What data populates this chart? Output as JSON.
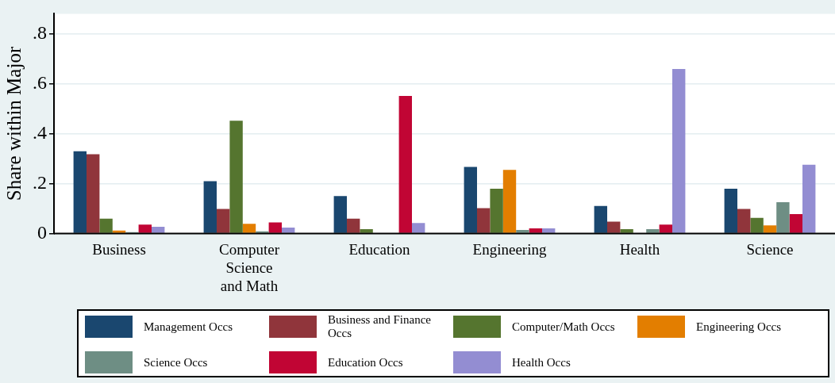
{
  "chart_data": {
    "type": "bar",
    "ylabel": "Share within Major",
    "categories": [
      "Business",
      "Computer Science and Math",
      "Education",
      "Engineering",
      "Health",
      "Science"
    ],
    "series": [
      {
        "name": "Management Occs",
        "color": "#1a476f",
        "values": [
          0.33,
          0.21,
          0.15,
          0.267,
          0.111,
          0.18
        ]
      },
      {
        "name": "Business and Finance Occs",
        "color": "#90353b",
        "values": [
          0.318,
          0.099,
          0.06,
          0.102,
          0.048,
          0.099
        ]
      },
      {
        "name": "Computer/Math Occs",
        "color": "#55752f",
        "values": [
          0.06,
          0.452,
          0.018,
          0.18,
          0.018,
          0.063
        ]
      },
      {
        "name": "Engineering Occs",
        "color": "#e37e00",
        "values": [
          0.012,
          0.039,
          0.003,
          0.255,
          0.003,
          0.033
        ]
      },
      {
        "name": "Science Occs",
        "color": "#6e8e84",
        "values": [
          0.006,
          0.009,
          0.003,
          0.015,
          0.018,
          0.126
        ]
      },
      {
        "name": "Education Occs",
        "color": "#c10534",
        "values": [
          0.036,
          0.045,
          0.551,
          0.021,
          0.036,
          0.078
        ]
      },
      {
        "name": "Health Occs",
        "color": "#938dd2",
        "values": [
          0.027,
          0.024,
          0.042,
          0.021,
          0.659,
          0.276
        ]
      }
    ],
    "ylim": [
      0,
      0.88
    ],
    "yticks": [
      0,
      {
        "value": 0.2,
        "label": ".2"
      },
      {
        "value": 0.4,
        "label": ".4"
      },
      {
        "value": 0.6,
        "label": ".6"
      },
      {
        "value": 0.8,
        "label": ".8"
      }
    ],
    "grid": "y",
    "legend": "bottom"
  }
}
